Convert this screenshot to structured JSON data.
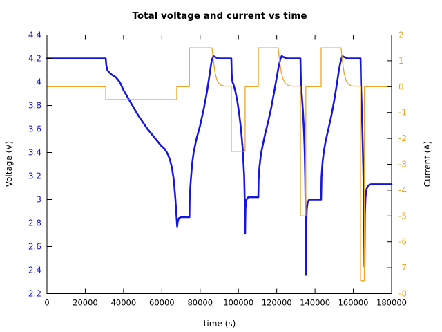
{
  "page": {
    "background": "#ffffff"
  },
  "chart_data": {
    "type": "line",
    "title": "Total voltage and current vs time",
    "xlabel": "time (s)",
    "ylabel_left": "Voltage (V)",
    "ylabel_right": "Current (A)",
    "grid": false,
    "legend": "none",
    "xlim": [
      0,
      180000
    ],
    "ylim_left": [
      2.2,
      4.4
    ],
    "ylim_right": [
      -8,
      2
    ],
    "xticks": [
      0,
      20000,
      40000,
      60000,
      80000,
      100000,
      120000,
      140000,
      160000,
      180000
    ],
    "yticks_left": [
      2.2,
      2.4,
      2.6,
      2.8,
      3,
      3.2,
      3.4,
      3.6,
      3.8,
      4,
      4.2,
      4.4
    ],
    "yticks_right": [
      -8,
      -7,
      -6,
      -5,
      -4,
      -3,
      -2,
      -1,
      0,
      1,
      2
    ],
    "colors": {
      "voltage": "#1515e0",
      "current": "#efa428",
      "frame": "#000000",
      "title": "#000000",
      "axis_titles": "#000000"
    },
    "series": [
      {
        "name": "voltage",
        "axis": "left",
        "color": "#1515e0",
        "width": 2.6,
        "points": [
          [
            0,
            4.2
          ],
          [
            30700,
            4.2
          ],
          [
            31000,
            4.14
          ],
          [
            31600,
            4.1
          ],
          [
            32600,
            4.08
          ],
          [
            34000,
            4.06
          ],
          [
            36000,
            4.04
          ],
          [
            38000,
            4.0
          ],
          [
            40000,
            3.93
          ],
          [
            42500,
            3.86
          ],
          [
            45000,
            3.79
          ],
          [
            47500,
            3.72
          ],
          [
            50000,
            3.66
          ],
          [
            52500,
            3.6
          ],
          [
            55000,
            3.55
          ],
          [
            57500,
            3.5
          ],
          [
            59500,
            3.46
          ],
          [
            61500,
            3.43
          ],
          [
            63000,
            3.39
          ],
          [
            64200,
            3.34
          ],
          [
            65300,
            3.27
          ],
          [
            66300,
            3.16
          ],
          [
            67100,
            3.0
          ],
          [
            67600,
            2.87
          ],
          [
            68000,
            2.77
          ],
          [
            68300,
            2.81
          ],
          [
            68800,
            2.84
          ],
          [
            70000,
            2.85
          ],
          [
            74400,
            2.85
          ],
          [
            74550,
            3.02
          ],
          [
            75100,
            3.16
          ],
          [
            75800,
            3.3
          ],
          [
            76600,
            3.4
          ],
          [
            78000,
            3.51
          ],
          [
            80000,
            3.63
          ],
          [
            82000,
            3.78
          ],
          [
            83600,
            3.92
          ],
          [
            85000,
            4.07
          ],
          [
            86000,
            4.18
          ],
          [
            86900,
            4.22
          ],
          [
            88000,
            4.21
          ],
          [
            89500,
            4.2
          ],
          [
            96300,
            4.2
          ],
          [
            96500,
            4.06
          ],
          [
            96900,
            4.0
          ],
          [
            97600,
            3.97
          ],
          [
            98400,
            3.92
          ],
          [
            99400,
            3.84
          ],
          [
            100400,
            3.73
          ],
          [
            101400,
            3.59
          ],
          [
            102300,
            3.42
          ],
          [
            103000,
            3.2
          ],
          [
            103350,
            2.95
          ],
          [
            103500,
            2.71
          ],
          [
            103700,
            2.93
          ],
          [
            104200,
            3.0
          ],
          [
            105200,
            3.02
          ],
          [
            110400,
            3.02
          ],
          [
            110550,
            3.17
          ],
          [
            111000,
            3.28
          ],
          [
            111800,
            3.39
          ],
          [
            112800,
            3.47
          ],
          [
            114000,
            3.56
          ],
          [
            115500,
            3.66
          ],
          [
            117000,
            3.77
          ],
          [
            118500,
            3.9
          ],
          [
            119800,
            4.02
          ],
          [
            120900,
            4.12
          ],
          [
            121800,
            4.19
          ],
          [
            122600,
            4.22
          ],
          [
            123800,
            4.21
          ],
          [
            125200,
            4.2
          ],
          [
            132400,
            4.2
          ],
          [
            132700,
            3.97
          ],
          [
            133200,
            3.87
          ],
          [
            133700,
            3.75
          ],
          [
            134200,
            3.6
          ],
          [
            134600,
            3.42
          ],
          [
            134900,
            3.18
          ],
          [
            135100,
            2.85
          ],
          [
            135250,
            2.36
          ],
          [
            135450,
            2.78
          ],
          [
            135700,
            2.92
          ],
          [
            136200,
            2.98
          ],
          [
            137000,
            3.0
          ],
          [
            143200,
            3.0
          ],
          [
            143400,
            3.19
          ],
          [
            143900,
            3.31
          ],
          [
            144600,
            3.41
          ],
          [
            145600,
            3.5
          ],
          [
            147000,
            3.6
          ],
          [
            148500,
            3.71
          ],
          [
            150000,
            3.84
          ],
          [
            151300,
            3.97
          ],
          [
            152400,
            4.09
          ],
          [
            153300,
            4.17
          ],
          [
            154200,
            4.22
          ],
          [
            155500,
            4.21
          ],
          [
            157000,
            4.2
          ],
          [
            163800,
            4.2
          ],
          [
            164050,
            3.97
          ],
          [
            164400,
            3.78
          ],
          [
            164800,
            3.55
          ],
          [
            165200,
            3.28
          ],
          [
            165550,
            2.95
          ],
          [
            165750,
            2.6
          ],
          [
            165850,
            2.43
          ],
          [
            166050,
            2.88
          ],
          [
            166400,
            3.02
          ],
          [
            166900,
            3.09
          ],
          [
            167900,
            3.12
          ],
          [
            169200,
            3.13
          ],
          [
            180000,
            3.13
          ]
        ]
      },
      {
        "name": "current",
        "axis": "right",
        "color": "#efa428",
        "width": 1.3,
        "points": [
          [
            0,
            0
          ],
          [
            30700,
            0
          ],
          [
            30700,
            -0.5
          ],
          [
            67800,
            -0.5
          ],
          [
            67800,
            0
          ],
          [
            74400,
            0
          ],
          [
            74400,
            1.5
          ],
          [
            86200,
            1.5
          ],
          [
            86900,
            1.02
          ],
          [
            87700,
            0.58
          ],
          [
            88600,
            0.3
          ],
          [
            89600,
            0.13
          ],
          [
            91000,
            0.05
          ],
          [
            93000,
            0.02
          ],
          [
            96300,
            0.02
          ],
          [
            96300,
            -2.5
          ],
          [
            103500,
            -2.5
          ],
          [
            103500,
            0
          ],
          [
            110400,
            0
          ],
          [
            110400,
            1.5
          ],
          [
            120800,
            1.5
          ],
          [
            121500,
            1.0
          ],
          [
            122400,
            0.55
          ],
          [
            123300,
            0.3
          ],
          [
            124300,
            0.15
          ],
          [
            125600,
            0.06
          ],
          [
            127500,
            0.02
          ],
          [
            132400,
            0.02
          ],
          [
            132400,
            -5
          ],
          [
            135200,
            -5
          ],
          [
            135200,
            0
          ],
          [
            143200,
            0
          ],
          [
            143200,
            1.5
          ],
          [
            153600,
            1.5
          ],
          [
            154300,
            1.0
          ],
          [
            155200,
            0.52
          ],
          [
            156200,
            0.24
          ],
          [
            157400,
            0.1
          ],
          [
            159000,
            0.03
          ],
          [
            160600,
            0.02
          ],
          [
            163800,
            0.02
          ],
          [
            163800,
            -7.5
          ],
          [
            165800,
            -7.5
          ],
          [
            165800,
            0
          ],
          [
            180000,
            0
          ]
        ]
      }
    ]
  }
}
